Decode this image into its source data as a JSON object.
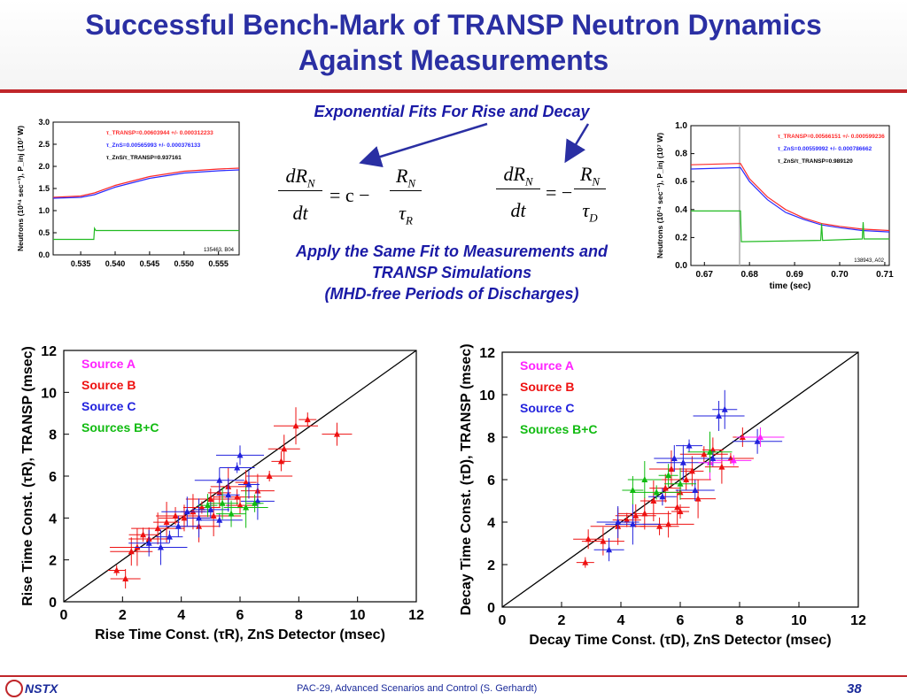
{
  "slide": {
    "title_line1": "Successful Bench-Mark of TRANSP Neutron Dynamics",
    "title_line2": "Against Measurements",
    "subtitle_fits": "Exponential Fits For Rise and Decay",
    "apply_line1": "Apply the Same Fit to Measurements and",
    "apply_line2": "TRANSP Simulations",
    "apply_line3": "(MHD-free Periods of Discharges)",
    "footer_logo": "NSTX",
    "footer_text": "PAC-29, Advanced Scenarios and Control (S. Gerhardt)",
    "page_number": "38",
    "colors": {
      "title": "#2a2fa3",
      "rule": "#c0262a"
    }
  },
  "equations": {
    "rise": {
      "lhs_num": "dR",
      "lhs_sub": "N",
      "lhs_den": "dt",
      "op": "= c −",
      "rhs_num": "R",
      "rhs_sub": "N",
      "rhs_den": "τ",
      "rhs_den_sub": "R"
    },
    "decay": {
      "lhs_num": "dR",
      "lhs_sub": "N",
      "lhs_den": "dt",
      "op": "= −",
      "rhs_num": "R",
      "rhs_sub": "N",
      "rhs_den": "τ",
      "rhs_den_sub": "D"
    }
  },
  "chart_data": [
    {
      "type": "line",
      "ylabel": "Neutrons (10¹⁴ sec⁻¹), P_inj (10⁷ W)",
      "xlim": [
        0.531,
        0.558
      ],
      "ylim": [
        0,
        3
      ],
      "xticks": [
        "0.535",
        "0.540",
        "0.545",
        "0.550",
        "0.555"
      ],
      "yticks": [
        "0.0",
        "0.5",
        "1.0",
        "1.5",
        "2.0",
        "2.5",
        "3.0"
      ],
      "annotations": [
        "τ_TRANSP=0.00603944 +/- 0.000312233",
        "τ_ZnS=0.00565993 +/- 0.000376133",
        "τ_ZnS/τ_TRANSP=0.937161"
      ],
      "shot_label": "135463, B04",
      "series": [
        {
          "color": "#ff2a2a",
          "x": [
            0.531,
            0.535,
            0.537,
            0.54,
            0.545,
            0.55,
            0.555,
            0.558
          ],
          "y": [
            1.3,
            1.33,
            1.4,
            1.57,
            1.77,
            1.89,
            1.94,
            1.96
          ]
        },
        {
          "color": "#2a2aff",
          "x": [
            0.531,
            0.535,
            0.537,
            0.54,
            0.545,
            0.55,
            0.555,
            0.558
          ],
          "y": [
            1.28,
            1.3,
            1.36,
            1.53,
            1.73,
            1.85,
            1.9,
            1.92
          ]
        },
        {
          "color": "#22bb22",
          "x": [
            0.531,
            0.5369,
            0.537,
            0.5372,
            0.558
          ],
          "y": [
            0.35,
            0.35,
            0.6,
            0.55,
            0.55
          ]
        }
      ]
    },
    {
      "type": "line",
      "ylabel": "Neutrons (10¹⁴ sec⁻¹), P_inj (10⁷ W)",
      "xlabel": "time (sec)",
      "xlim": [
        0.667,
        0.711
      ],
      "ylim": [
        0,
        1.0
      ],
      "xticks": [
        "0.67",
        "0.68",
        "0.69",
        "0.70",
        "0.71"
      ],
      "yticks": [
        "0.0",
        "0.2",
        "0.4",
        "0.6",
        "0.8",
        "1.0"
      ],
      "annotations": [
        "τ_TRANSP=0.00566151 +/- 0.000599236",
        "τ_ZnS=0.00559992 +/- 0.000786662",
        "τ_ZnS/τ_TRANSP=0.989120"
      ],
      "shot_label": "138943, A02",
      "series": [
        {
          "color": "#ff2a2a",
          "x": [
            0.667,
            0.678,
            0.68,
            0.684,
            0.688,
            0.692,
            0.696,
            0.7,
            0.705,
            0.711
          ],
          "y": [
            0.72,
            0.73,
            0.62,
            0.49,
            0.4,
            0.34,
            0.3,
            0.28,
            0.26,
            0.25
          ]
        },
        {
          "color": "#2a2aff",
          "x": [
            0.667,
            0.678,
            0.68,
            0.684,
            0.688,
            0.692,
            0.696,
            0.7,
            0.705,
            0.711
          ],
          "y": [
            0.69,
            0.7,
            0.6,
            0.47,
            0.38,
            0.33,
            0.29,
            0.27,
            0.25,
            0.24
          ]
        },
        {
          "color": "#22bb22",
          "x": [
            0.667,
            0.678,
            0.6782,
            0.6958,
            0.696,
            0.6962,
            0.705,
            0.7052,
            0.7054,
            0.711
          ],
          "y": [
            0.39,
            0.39,
            0.17,
            0.18,
            0.3,
            0.18,
            0.19,
            0.31,
            0.19,
            0.19
          ]
        }
      ]
    },
    {
      "type": "scatter",
      "xlabel": "Rise Time Const. (τR), ZnS Detector (msec)",
      "ylabel": "Rise Time Const. (τR), TRANSP (msec)",
      "xlim": [
        0,
        12
      ],
      "ylim": [
        0,
        12
      ],
      "xticks": [
        "0",
        "2",
        "4",
        "6",
        "8",
        "10",
        "12"
      ],
      "yticks": [
        "0",
        "2",
        "4",
        "6",
        "8",
        "10",
        "12"
      ],
      "legend": [
        {
          "label": "Source A",
          "color": "#ff22ff"
        },
        {
          "label": "Source B",
          "color": "#ee1111"
        },
        {
          "label": "Source C",
          "color": "#2222dd"
        },
        {
          "label": "Sources B+C",
          "color": "#11bb11"
        }
      ],
      "points": [
        {
          "x": 1.8,
          "y": 1.5,
          "s": "B"
        },
        {
          "x": 2.1,
          "y": 1.1,
          "s": "B"
        },
        {
          "x": 2.3,
          "y": 2.4,
          "s": "B"
        },
        {
          "x": 2.5,
          "y": 2.6,
          "s": "B"
        },
        {
          "x": 2.7,
          "y": 3.2,
          "s": "B"
        },
        {
          "x": 2.9,
          "y": 3.0,
          "s": "B"
        },
        {
          "x": 3.2,
          "y": 3.5,
          "s": "B"
        },
        {
          "x": 3.5,
          "y": 3.8,
          "s": "B"
        },
        {
          "x": 3.8,
          "y": 4.1,
          "s": "B"
        },
        {
          "x": 4.1,
          "y": 4.0,
          "s": "B"
        },
        {
          "x": 4.4,
          "y": 4.3,
          "s": "B"
        },
        {
          "x": 4.7,
          "y": 4.5,
          "s": "B"
        },
        {
          "x": 5.0,
          "y": 4.9,
          "s": "B"
        },
        {
          "x": 5.3,
          "y": 5.2,
          "s": "B"
        },
        {
          "x": 5.6,
          "y": 5.5,
          "s": "B"
        },
        {
          "x": 5.9,
          "y": 5.0,
          "s": "B"
        },
        {
          "x": 6.2,
          "y": 5.7,
          "s": "B"
        },
        {
          "x": 6.6,
          "y": 5.3,
          "s": "B"
        },
        {
          "x": 7.0,
          "y": 6.0,
          "s": "B"
        },
        {
          "x": 7.4,
          "y": 6.7,
          "s": "B"
        },
        {
          "x": 7.5,
          "y": 7.3,
          "s": "B"
        },
        {
          "x": 7.9,
          "y": 8.4,
          "s": "B"
        },
        {
          "x": 8.3,
          "y": 8.7,
          "s": "B"
        },
        {
          "x": 9.3,
          "y": 8.0,
          "s": "B"
        },
        {
          "x": 4.6,
          "y": 3.6,
          "s": "B"
        },
        {
          "x": 5.1,
          "y": 4.1,
          "s": "B"
        },
        {
          "x": 6.0,
          "y": 4.6,
          "s": "B"
        },
        {
          "x": 2.9,
          "y": 2.8,
          "s": "C"
        },
        {
          "x": 3.3,
          "y": 2.6,
          "s": "C"
        },
        {
          "x": 3.6,
          "y": 3.1,
          "s": "C"
        },
        {
          "x": 3.9,
          "y": 3.6,
          "s": "C"
        },
        {
          "x": 4.2,
          "y": 4.3,
          "s": "C"
        },
        {
          "x": 4.6,
          "y": 4.0,
          "s": "C"
        },
        {
          "x": 5.0,
          "y": 4.4,
          "s": "C"
        },
        {
          "x": 5.3,
          "y": 5.8,
          "s": "C"
        },
        {
          "x": 5.6,
          "y": 5.1,
          "s": "C"
        },
        {
          "x": 5.9,
          "y": 6.4,
          "s": "C"
        },
        {
          "x": 6.0,
          "y": 7.0,
          "s": "C"
        },
        {
          "x": 6.3,
          "y": 5.6,
          "s": "C"
        },
        {
          "x": 6.6,
          "y": 4.8,
          "s": "C"
        },
        {
          "x": 5.3,
          "y": 3.9,
          "s": "C"
        },
        {
          "x": 4.9,
          "y": 4.6,
          "s": "BC"
        },
        {
          "x": 5.4,
          "y": 4.7,
          "s": "BC"
        },
        {
          "x": 6.2,
          "y": 4.5,
          "s": "BC"
        },
        {
          "x": 6.5,
          "y": 4.7,
          "s": "BC"
        },
        {
          "x": 5.7,
          "y": 4.2,
          "s": "BC"
        }
      ]
    },
    {
      "type": "scatter",
      "xlabel": "Decay Time Const. (τD), ZnS Detector (msec)",
      "ylabel": "Decay Time Const. (τD), TRANSP (msec)",
      "xlim": [
        0,
        12
      ],
      "ylim": [
        0,
        12
      ],
      "xticks": [
        "0",
        "2",
        "4",
        "6",
        "8",
        "10",
        "12"
      ],
      "yticks": [
        "0",
        "2",
        "4",
        "6",
        "8",
        "10",
        "12"
      ],
      "legend": [
        {
          "label": "Source A",
          "color": "#ff22ff"
        },
        {
          "label": "Source B",
          "color": "#ee1111"
        },
        {
          "label": "Source C",
          "color": "#2222dd"
        },
        {
          "label": "Sources B+C",
          "color": "#11bb11"
        }
      ],
      "points": [
        {
          "x": 2.8,
          "y": 2.1,
          "s": "B"
        },
        {
          "x": 2.9,
          "y": 3.2,
          "s": "B"
        },
        {
          "x": 3.4,
          "y": 3.1,
          "s": "B"
        },
        {
          "x": 3.9,
          "y": 3.8,
          "s": "B"
        },
        {
          "x": 4.2,
          "y": 4.1,
          "s": "B"
        },
        {
          "x": 4.5,
          "y": 4.3,
          "s": "B"
        },
        {
          "x": 4.8,
          "y": 4.4,
          "s": "B"
        },
        {
          "x": 5.1,
          "y": 5.0,
          "s": "B"
        },
        {
          "x": 5.3,
          "y": 3.8,
          "s": "B"
        },
        {
          "x": 5.6,
          "y": 3.9,
          "s": "B"
        },
        {
          "x": 5.9,
          "y": 4.7,
          "s": "B"
        },
        {
          "x": 6.0,
          "y": 5.4,
          "s": "B"
        },
        {
          "x": 6.2,
          "y": 6.0,
          "s": "B"
        },
        {
          "x": 6.4,
          "y": 6.4,
          "s": "B"
        },
        {
          "x": 6.6,
          "y": 5.1,
          "s": "B"
        },
        {
          "x": 6.8,
          "y": 7.2,
          "s": "B"
        },
        {
          "x": 7.1,
          "y": 7.4,
          "s": "B"
        },
        {
          "x": 7.4,
          "y": 6.6,
          "s": "B"
        },
        {
          "x": 7.7,
          "y": 7.0,
          "s": "B"
        },
        {
          "x": 8.1,
          "y": 8.0,
          "s": "B"
        },
        {
          "x": 5.5,
          "y": 5.6,
          "s": "B"
        },
        {
          "x": 5.7,
          "y": 6.5,
          "s": "B"
        },
        {
          "x": 6.0,
          "y": 4.5,
          "s": "B"
        },
        {
          "x": 3.6,
          "y": 2.7,
          "s": "C"
        },
        {
          "x": 3.9,
          "y": 4.0,
          "s": "C"
        },
        {
          "x": 4.4,
          "y": 3.9,
          "s": "C"
        },
        {
          "x": 5.4,
          "y": 5.2,
          "s": "C"
        },
        {
          "x": 5.8,
          "y": 7.0,
          "s": "C"
        },
        {
          "x": 6.1,
          "y": 6.8,
          "s": "C"
        },
        {
          "x": 6.3,
          "y": 7.6,
          "s": "C"
        },
        {
          "x": 6.5,
          "y": 5.5,
          "s": "C"
        },
        {
          "x": 7.3,
          "y": 9.0,
          "s": "C"
        },
        {
          "x": 7.5,
          "y": 9.3,
          "s": "C"
        },
        {
          "x": 7.1,
          "y": 7.0,
          "s": "C"
        },
        {
          "x": 8.6,
          "y": 7.8,
          "s": "C"
        },
        {
          "x": 7.0,
          "y": 6.8,
          "s": "A"
        },
        {
          "x": 7.8,
          "y": 6.9,
          "s": "A"
        },
        {
          "x": 8.7,
          "y": 8.0,
          "s": "A"
        },
        {
          "x": 4.4,
          "y": 5.5,
          "s": "BC"
        },
        {
          "x": 4.8,
          "y": 6.0,
          "s": "BC"
        },
        {
          "x": 5.2,
          "y": 5.4,
          "s": "BC"
        },
        {
          "x": 5.6,
          "y": 6.2,
          "s": "BC"
        },
        {
          "x": 6.0,
          "y": 5.8,
          "s": "BC"
        },
        {
          "x": 7.0,
          "y": 7.3,
          "s": "BC"
        }
      ]
    }
  ]
}
